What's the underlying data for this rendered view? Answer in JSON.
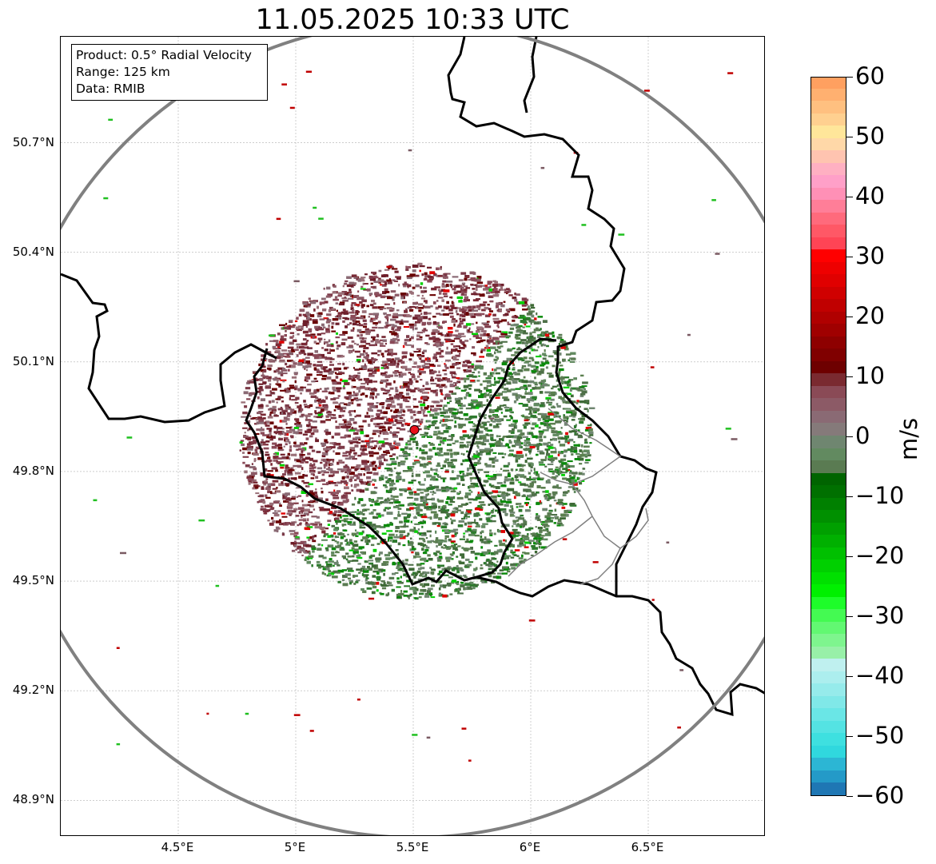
{
  "title": "11.05.2025 10:33 UTC",
  "info": {
    "product": "Product: 0.5° Radial Velocity",
    "range": "Range: 125 km",
    "source": "Data: RMIB"
  },
  "axes": {
    "lon_min": 4.0,
    "lon_max": 7.0,
    "lat_min": 48.8,
    "lat_max": 50.99,
    "lat_ticks": [
      {
        "value": 50.7,
        "label": "50.7°N"
      },
      {
        "value": 50.4,
        "label": "50.4°N"
      },
      {
        "value": 50.1,
        "label": "50.1°N"
      },
      {
        "value": 49.8,
        "label": "49.8°N"
      },
      {
        "value": 49.5,
        "label": "49.5°N"
      },
      {
        "value": 49.2,
        "label": "49.2°N"
      },
      {
        "value": 48.9,
        "label": "48.9°N"
      }
    ],
    "lon_ticks": [
      {
        "value": 4.5,
        "label": "4.5°E"
      },
      {
        "value": 5.0,
        "label": "5°E"
      },
      {
        "value": 5.5,
        "label": "5.5°E"
      },
      {
        "value": 6.0,
        "label": "6°E"
      },
      {
        "value": 6.5,
        "label": "6.5°E"
      }
    ],
    "grid": true
  },
  "radar": {
    "lon": 5.505,
    "lat": 49.914,
    "range_km": 125,
    "marker_color": "#e8101a",
    "range_ring_color": "#808080"
  },
  "colorbar": {
    "unit": "m/s",
    "min": -60,
    "max": 60,
    "ticks": [
      {
        "value": 60,
        "label": "60"
      },
      {
        "value": 50,
        "label": "50"
      },
      {
        "value": 40,
        "label": "40"
      },
      {
        "value": 30,
        "label": "30"
      },
      {
        "value": 20,
        "label": "20"
      },
      {
        "value": 10,
        "label": "10"
      },
      {
        "value": 0,
        "label": "0"
      },
      {
        "value": -10,
        "label": "−10"
      },
      {
        "value": -20,
        "label": "−20"
      },
      {
        "value": -30,
        "label": "−30"
      },
      {
        "value": -40,
        "label": "−40"
      },
      {
        "value": -50,
        "label": "−50"
      },
      {
        "value": -60,
        "label": "−60"
      }
    ],
    "colors": [
      "#1f77b4",
      "#249ac8",
      "#2cb6d4",
      "#30d8de",
      "#3ee0e0",
      "#54e3e3",
      "#6ae6e6",
      "#80e8e8",
      "#96ebeb",
      "#aceeee",
      "#bff0ef",
      "#98f0a8",
      "#7ef58e",
      "#62f872",
      "#44fa52",
      "#1efd2a",
      "#00f000",
      "#00e000",
      "#00d000",
      "#00c000",
      "#00b000",
      "#00a000",
      "#009000",
      "#008000",
      "#007000",
      "#006400",
      "#5a7b52",
      "#628a60",
      "#6f8670",
      "#857a7a",
      "#8a6a74",
      "#8c5a66",
      "#8a4a56",
      "#7a2a30",
      "#6e0000",
      "#800000",
      "#8e0000",
      "#a00000",
      "#b00000",
      "#c00000",
      "#d00000",
      "#e00000",
      "#ee0000",
      "#ff0000",
      "#ff4455",
      "#ff5866",
      "#ff6a7c",
      "#ff7e98",
      "#ff90b6",
      "#ffa0c8",
      "#ffb0c2",
      "#ffc4b0",
      "#ffd8a8",
      "#ffe69a",
      "#ffd090",
      "#ffc080",
      "#ffb070",
      "#ffa060"
    ]
  },
  "layers": {
    "country_border_color": "#000000",
    "region_border_color": "#808080",
    "grid_color": "#b0b0b0"
  }
}
